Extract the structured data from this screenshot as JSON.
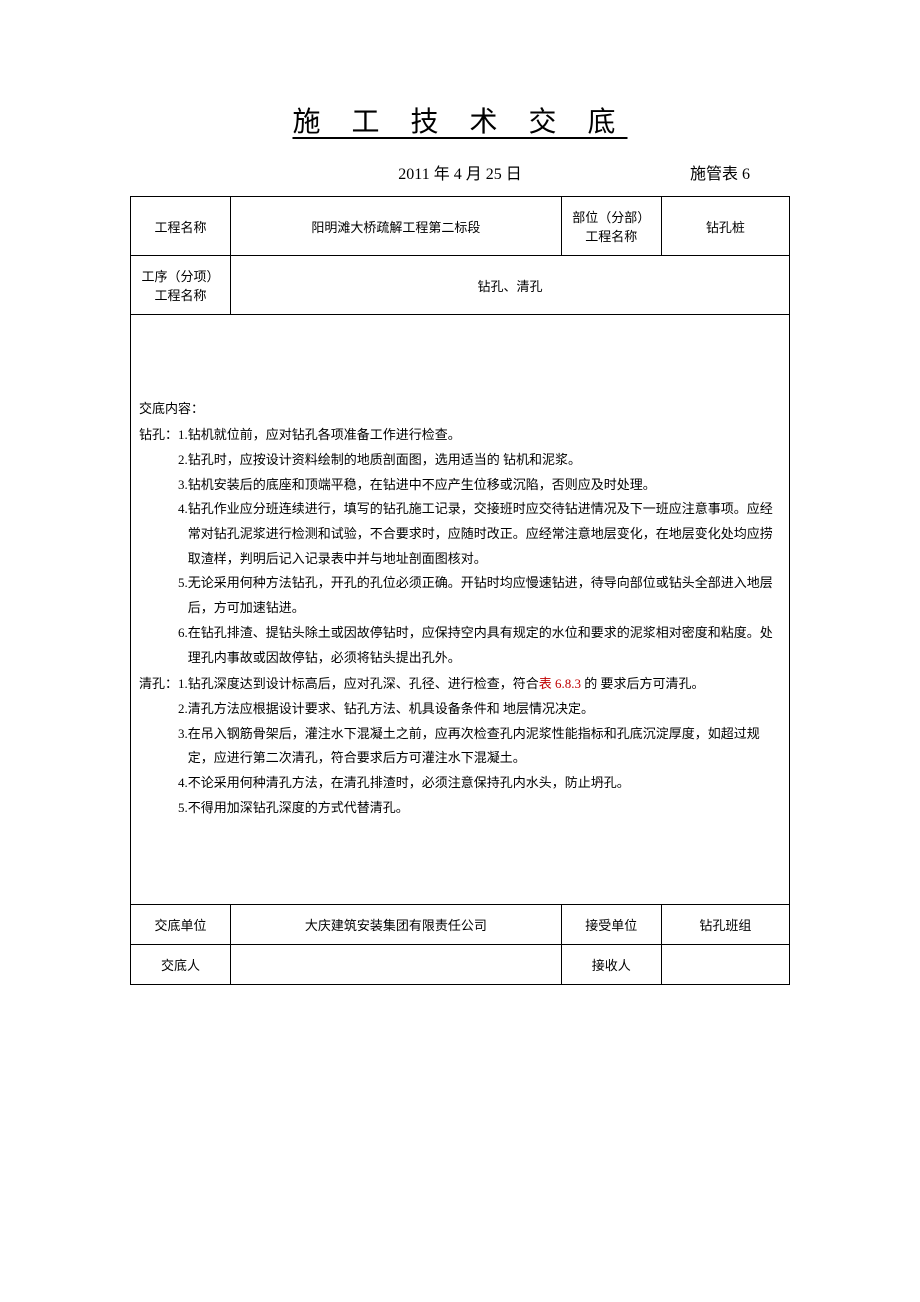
{
  "title": "施 工 技 术 交 底",
  "date": "2011 年 4 月 25 日",
  "form_id": "施管表 6",
  "header_rows": {
    "project_name_label": "工程名称",
    "project_name_value": "阳明滩大桥疏解工程第二标段",
    "subproject_label_line1": "部位（分部）",
    "subproject_label_line2": "工程名称",
    "subproject_value": "钻孔桩",
    "process_label_line1": "工序（分项）",
    "process_label_line2": "工程名称",
    "process_value": "钻孔、清孔"
  },
  "content": {
    "header": "交底内容：",
    "sections": [
      {
        "label": "钻孔：",
        "items": [
          {
            "num": "1.",
            "text": "钻机就位前，应对钻孔各项准备工作进行检查。"
          },
          {
            "num": "2.",
            "text": "钻孔时，应按设计资料绘制的地质剖面图，选用适当的 钻机和泥浆。"
          },
          {
            "num": "3.",
            "text": "钻机安装后的底座和顶端平稳，在钻进中不应产生位移或沉陷，否则应及时处理。"
          },
          {
            "num": "4.",
            "text": "钻孔作业应分班连续进行，填写的钻孔施工记录，交接班时应交待钻进情况及下一班应注意事项。应经常对钻孔泥浆进行检测和试验，不合要求时，应随时改正。应经常注意地层变化，在地层变化处均应捞取渣样，判明后记入记录表中并与地址剖面图核对。"
          },
          {
            "num": "5.",
            "text": "无论采用何种方法钻孔，开孔的孔位必须正确。开钻时均应慢速钻进，待导向部位或钻头全部进入地层后，方可加速钻进。"
          },
          {
            "num": "6.",
            "text": "在钻孔排渣、提钻头除土或因故停钻时，应保持空内具有规定的水位和要求的泥浆相对密度和粘度。处理孔内事故或因故停钻，必须将钻头提出孔外。"
          }
        ]
      },
      {
        "label": "清孔：",
        "items": [
          {
            "num": "1.",
            "text_pre": "钻孔深度达到设计标高后，应对孔深、孔径、进行检查，符合",
            "text_red": "表 6.8.3",
            "text_post": " 的 要求后方可清孔。"
          },
          {
            "num": "2.",
            "text": "清孔方法应根据设计要求、钻孔方法、机具设备条件和 地层情况决定。"
          },
          {
            "num": "3.",
            "text": "在吊入钢筋骨架后，灌注水下混凝土之前，应再次检查孔内泥浆性能指标和孔底沉淀厚度，如超过规定，应进行第二次清孔，符合要求后方可灌注水下混凝土。"
          },
          {
            "num": "4.",
            "text": "不论采用何种清孔方法，在清孔排渣时，必须注意保持孔内水头，防止坍孔。"
          },
          {
            "num": "5.",
            "text": "不得用加深钻孔深度的方式代替清孔。"
          }
        ]
      }
    ]
  },
  "footer": {
    "disclose_unit_label": "交底单位",
    "disclose_unit_value": "大庆建筑安装集团有限责任公司",
    "receive_unit_label": "接受单位",
    "receive_unit_value": "钻孔班组",
    "disclose_person_label": "交底人",
    "disclose_person_value": "",
    "receive_person_label": "接收人",
    "receive_person_value": ""
  },
  "colors": {
    "text": "#000000",
    "red": "#c00000",
    "border": "#000000",
    "background": "#ffffff"
  }
}
